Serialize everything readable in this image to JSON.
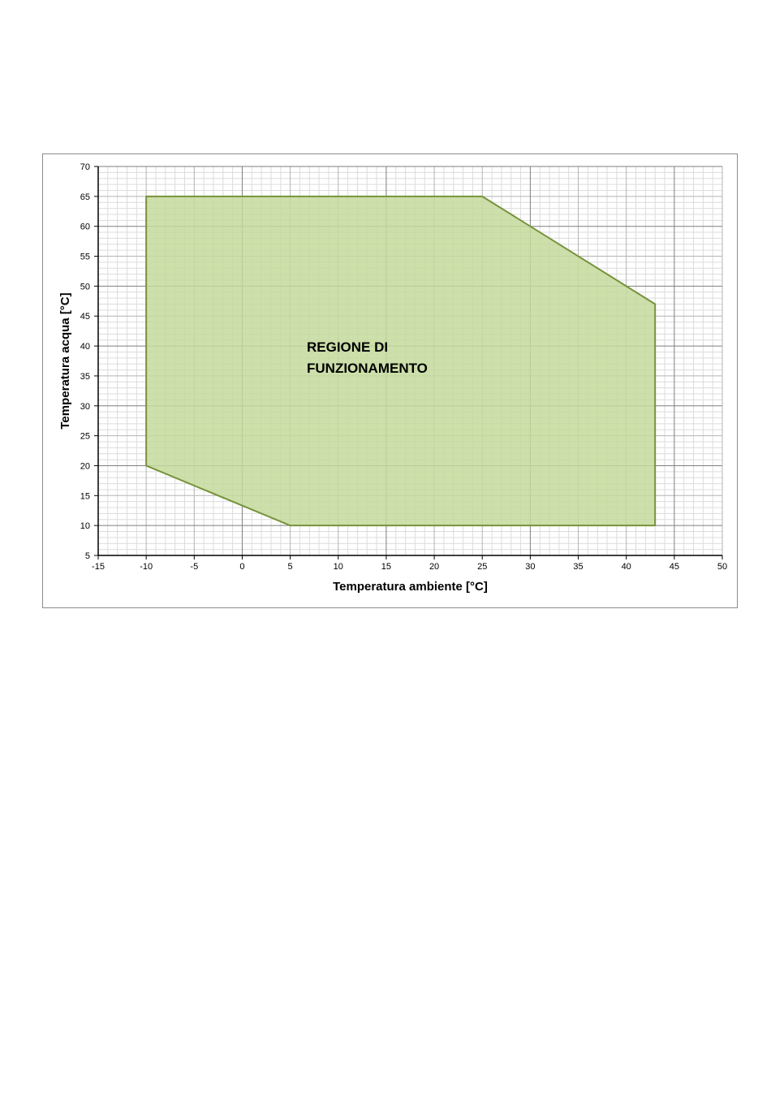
{
  "chart_data": {
    "type": "area",
    "xlabel": "Temperatura ambiente [°C]",
    "ylabel": "Temperatura acqua [°C]",
    "xlim": [
      -15,
      50
    ],
    "ylim": [
      5,
      70
    ],
    "x_ticks": [
      -15,
      -10,
      -5,
      0,
      5,
      10,
      15,
      20,
      25,
      30,
      35,
      40,
      45,
      50
    ],
    "y_ticks": [
      5,
      10,
      15,
      20,
      25,
      30,
      35,
      40,
      45,
      50,
      55,
      60,
      65,
      70
    ],
    "minor_step": 1,
    "bold_grid_step_x": 15,
    "bold_grid_step_y": 10,
    "grid": true,
    "series": [
      {
        "x": [
          -10,
          25,
          43,
          43,
          5,
          -10
        ],
        "y": [
          65,
          65,
          47,
          10,
          10,
          20
        ]
      }
    ],
    "annotation": [
      "REGIONE DI",
      "FUNZIONAMENTO"
    ],
    "colors": {
      "fill": "#c4d99b",
      "stroke": "#77933c",
      "grid_minor": "#dcdcdc",
      "grid_major": "#b4b4b4",
      "grid_bold": "#7f7f7f",
      "axis": "#000000"
    }
  }
}
